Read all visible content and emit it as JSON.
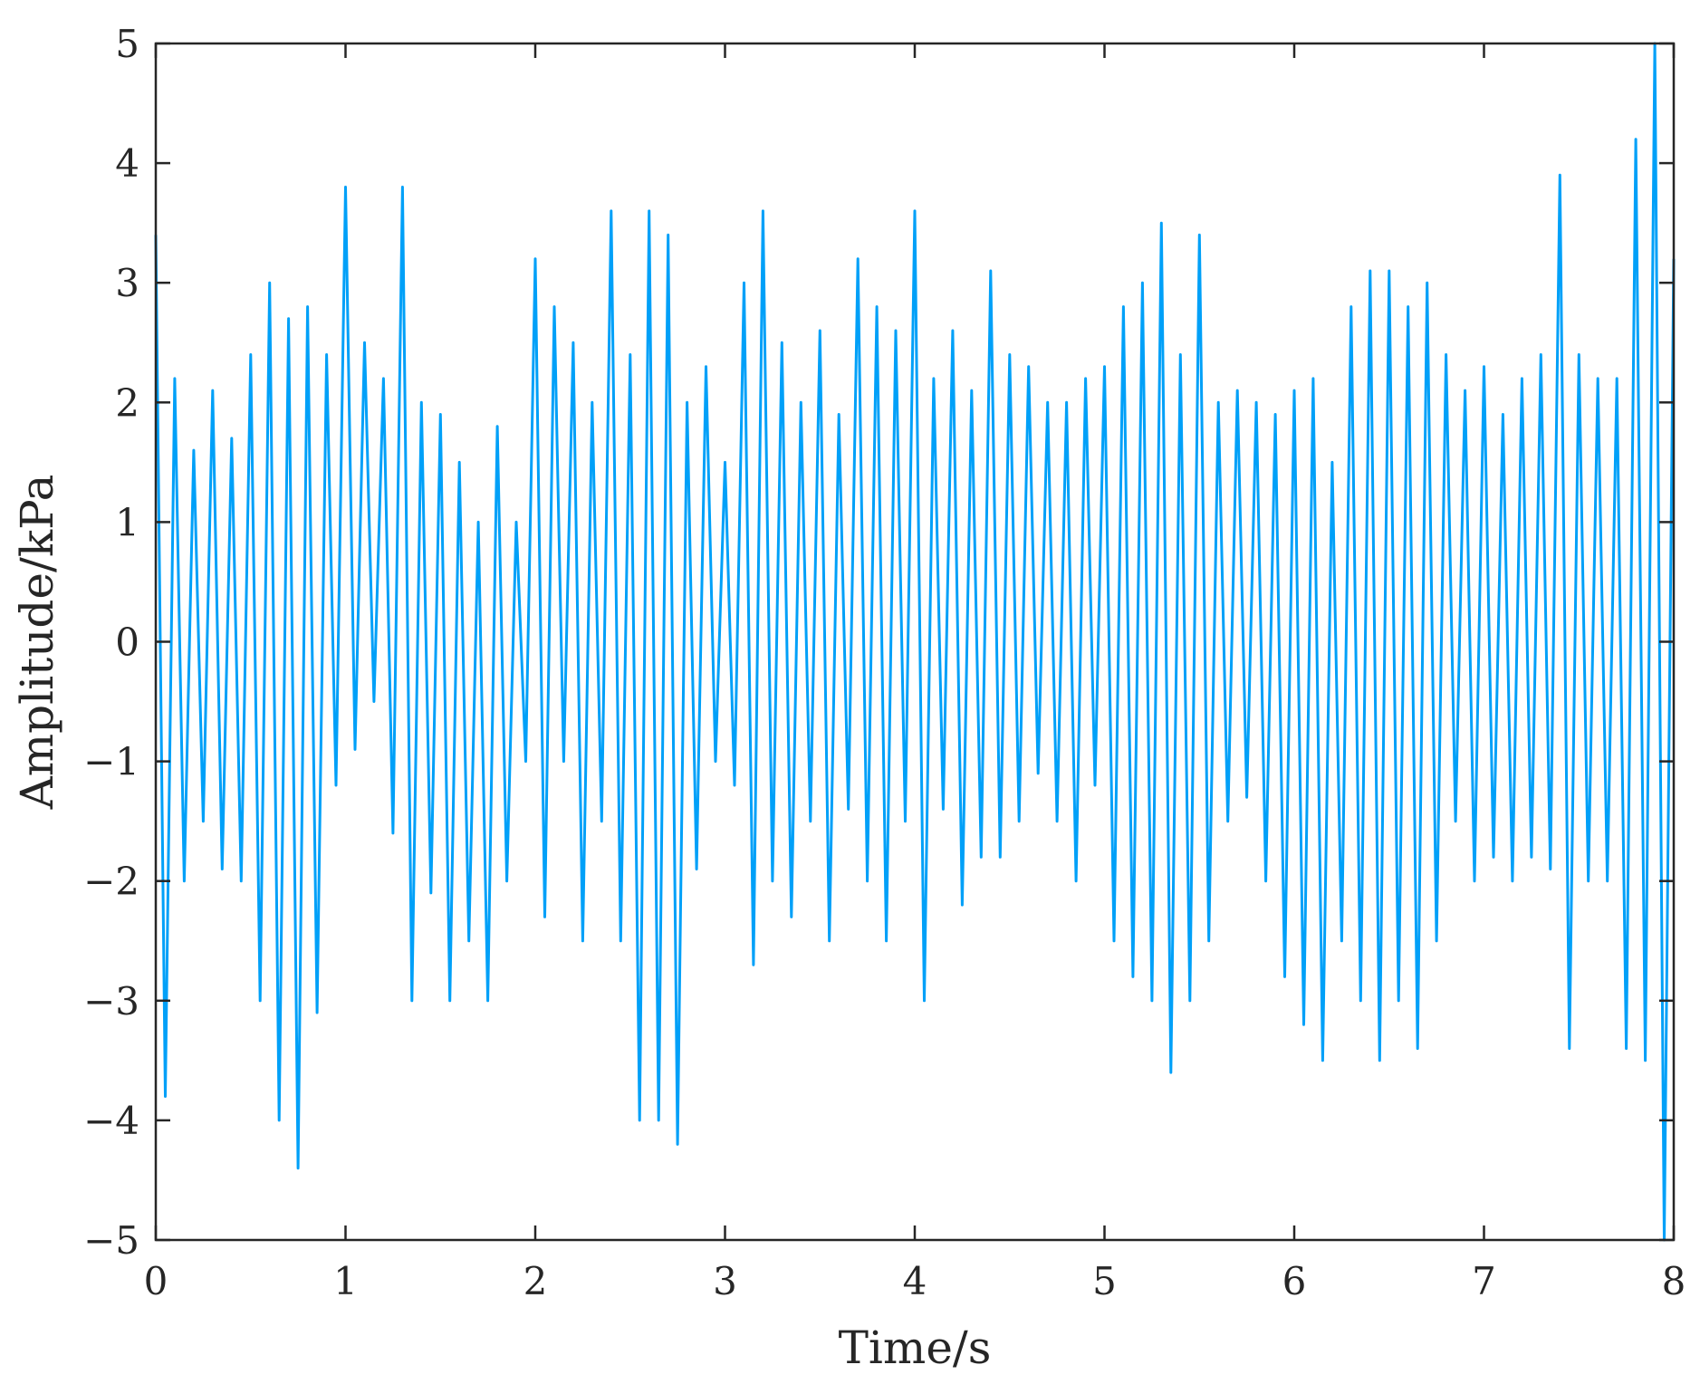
{
  "chart_data": {
    "type": "line",
    "title": "",
    "xlabel": "Time/s",
    "ylabel": "Amplitude/kPa",
    "xlim": [
      0,
      8
    ],
    "ylim": [
      -5,
      5
    ],
    "xticks": [
      "0",
      "1",
      "2",
      "3",
      "4",
      "5",
      "6",
      "7",
      "8"
    ],
    "yticks": [
      "5",
      "4",
      "3",
      "2",
      "1",
      "0",
      "−1",
      "−2",
      "−3",
      "−4",
      "−5"
    ],
    "grid": false,
    "legend": "none",
    "colors": {
      "series": "#00a0f8",
      "axis": "#262626",
      "background": "#ffffff"
    },
    "series": [
      {
        "color": "#00a0f8",
        "x": [
          0.0,
          0.05,
          0.1,
          0.15,
          0.2,
          0.25,
          0.3,
          0.35,
          0.4,
          0.45,
          0.5,
          0.55,
          0.6,
          0.65,
          0.7,
          0.75,
          0.8,
          0.85,
          0.9,
          0.95,
          1.0,
          1.05,
          1.1,
          1.15,
          1.2,
          1.25,
          1.3,
          1.35,
          1.4,
          1.45,
          1.5,
          1.55,
          1.6,
          1.65,
          1.7,
          1.75,
          1.8,
          1.85,
          1.9,
          1.95,
          2.0,
          2.05,
          2.1,
          2.15,
          2.2,
          2.25,
          2.3,
          2.35,
          2.4,
          2.45,
          2.5,
          2.55,
          2.6,
          2.65,
          2.7,
          2.75,
          2.8,
          2.85,
          2.9,
          2.95,
          3.0,
          3.05,
          3.1,
          3.15,
          3.2,
          3.25,
          3.3,
          3.35,
          3.4,
          3.45,
          3.5,
          3.55,
          3.6,
          3.65,
          3.7,
          3.75,
          3.8,
          3.85,
          3.9,
          3.95,
          4.0,
          4.05,
          4.1,
          4.15,
          4.2,
          4.25,
          4.3,
          4.35,
          4.4,
          4.45,
          4.5,
          4.55,
          4.6,
          4.65,
          4.7,
          4.75,
          4.8,
          4.85,
          4.9,
          4.95,
          5.0,
          5.05,
          5.1,
          5.15,
          5.2,
          5.25,
          5.3,
          5.35,
          5.4,
          5.45,
          5.5,
          5.55,
          5.6,
          5.65,
          5.7,
          5.75,
          5.8,
          5.85,
          5.9,
          5.95,
          6.0,
          6.05,
          6.1,
          6.15,
          6.2,
          6.25,
          6.3,
          6.35,
          6.4,
          6.45,
          6.5,
          6.55,
          6.6,
          6.65,
          6.7,
          6.75,
          6.8,
          6.85,
          6.9,
          6.95,
          7.0,
          7.05,
          7.1,
          7.15,
          7.2,
          7.25,
          7.3,
          7.35,
          7.4,
          7.45,
          7.5,
          7.55,
          7.6,
          7.65,
          7.7,
          7.75,
          7.8,
          7.85,
          7.9,
          7.95,
          8.0
        ],
        "y": [
          3.4,
          -3.8,
          2.2,
          -2.0,
          1.6,
          -1.5,
          2.1,
          -1.9,
          1.7,
          -2.0,
          2.4,
          -3.0,
          3.0,
          -4.0,
          2.7,
          -4.4,
          2.8,
          -3.1,
          2.4,
          -1.2,
          3.8,
          -0.9,
          2.5,
          -0.5,
          2.2,
          -1.6,
          3.8,
          -3.0,
          2.0,
          -2.1,
          1.9,
          -3.0,
          1.5,
          -2.5,
          1.0,
          -3.0,
          1.8,
          -2.0,
          1.0,
          -1.0,
          3.2,
          -2.3,
          2.8,
          -1.0,
          2.5,
          -2.5,
          2.0,
          -1.5,
          3.6,
          -2.5,
          2.4,
          -4.0,
          3.6,
          -4.0,
          3.4,
          -4.2,
          2.0,
          -1.9,
          2.3,
          -1.0,
          1.5,
          -1.2,
          3.0,
          -2.7,
          3.6,
          -2.0,
          2.5,
          -2.3,
          2.0,
          -1.5,
          2.6,
          -2.5,
          1.9,
          -1.4,
          3.2,
          -2.0,
          2.8,
          -2.5,
          2.6,
          -1.5,
          3.6,
          -3.0,
          2.2,
          -1.4,
          2.6,
          -2.2,
          2.1,
          -1.8,
          3.1,
          -1.8,
          2.4,
          -1.5,
          2.3,
          -1.1,
          2.0,
          -1.5,
          2.0,
          -2.0,
          2.2,
          -1.2,
          2.3,
          -2.5,
          2.8,
          -2.8,
          3.0,
          -3.0,
          3.5,
          -3.6,
          2.4,
          -3.0,
          3.4,
          -2.5,
          2.0,
          -1.5,
          2.1,
          -1.3,
          2.0,
          -2.0,
          1.9,
          -2.8,
          2.1,
          -3.2,
          2.2,
          -3.5,
          1.5,
          -2.5,
          2.8,
          -3.0,
          3.1,
          -3.5,
          3.1,
          -3.0,
          2.8,
          -3.4,
          3.0,
          -2.5,
          2.4,
          -1.5,
          2.1,
          -2.0,
          2.3,
          -1.8,
          1.9,
          -2.0,
          2.2,
          -1.8,
          2.4,
          -1.9,
          3.9,
          -3.4,
          2.4,
          -2.0,
          2.2,
          -2.0,
          2.2,
          -3.4,
          4.2,
          -3.5,
          5.0,
          -5.0,
          3.2
        ]
      }
    ]
  }
}
